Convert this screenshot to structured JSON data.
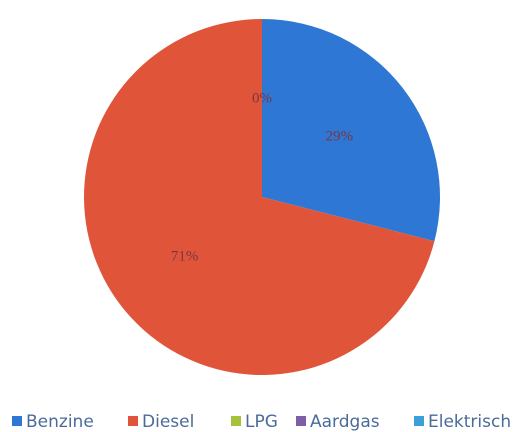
{
  "chart_data": {
    "type": "pie",
    "categories": [
      "Benzine",
      "Diesel",
      "LPG",
      "Aardgas",
      "Elektrisch"
    ],
    "values": [
      29,
      71,
      0,
      0,
      0
    ],
    "value_labels": [
      "29%",
      "71%",
      "0%",
      null,
      null
    ],
    "colors": [
      "#2f77d4",
      "#e0553a",
      "#a6c23c",
      "#7d5fa6",
      "#3b9fd8"
    ],
    "legend": "bottom"
  }
}
